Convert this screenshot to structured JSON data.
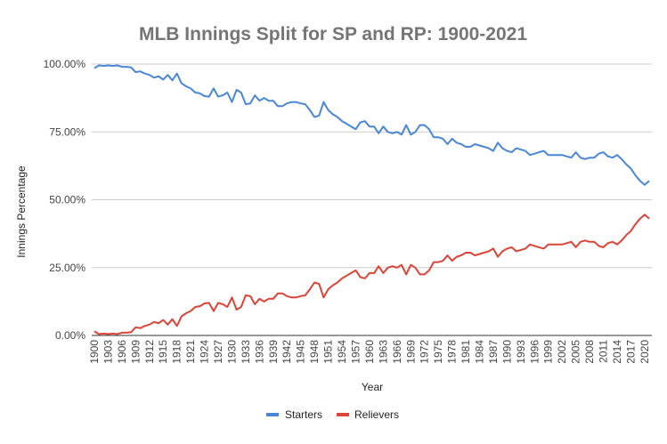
{
  "chart_data": {
    "type": "line",
    "title": "MLB Innings Split for SP and RP: 1900-2021",
    "xlabel": "Year",
    "ylabel": "Innings Percentage",
    "ylim": [
      0,
      100
    ],
    "y_ticks": [
      "0.00%",
      "25.00%",
      "50.00%",
      "75.00%",
      "100.00%"
    ],
    "y_tick_values": [
      0,
      25,
      50,
      75,
      100
    ],
    "x_start": 1900,
    "x_end": 2021,
    "x_tick_labels": [
      "1900",
      "1903",
      "1906",
      "1909",
      "1912",
      "1915",
      "1918",
      "1921",
      "1924",
      "1927",
      "1930",
      "1933",
      "1936",
      "1939",
      "1942",
      "1945",
      "1948",
      "1951",
      "1954",
      "1957",
      "1960",
      "1963",
      "1966",
      "1969",
      "1972",
      "1975",
      "1978",
      "1981",
      "1984",
      "1987",
      "1990",
      "1993",
      "1996",
      "1999",
      "2002",
      "2005",
      "2008",
      "2011",
      "2014",
      "2017",
      "2020"
    ],
    "grid": true,
    "legend_position": "bottom",
    "series": [
      {
        "name": "Starters",
        "color": "#4a86d8",
        "values": [
          98.5,
          99.5,
          99.3,
          99.5,
          99.3,
          99.5,
          99,
          99,
          98.8,
          97,
          97.3,
          96.5,
          96,
          95,
          95.5,
          94.3,
          96,
          94,
          96.5,
          93,
          91.8,
          91,
          89.5,
          89.2,
          88.2,
          88,
          91,
          88,
          88.5,
          89.5,
          86,
          90.5,
          89.5,
          85.2,
          85.5,
          88.5,
          86.5,
          87.5,
          86.5,
          86.5,
          84.5,
          84.5,
          85.5,
          86,
          86,
          85.5,
          85.2,
          83,
          80.5,
          81,
          86,
          83,
          81.5,
          80.5,
          79,
          78,
          77,
          76,
          78.5,
          79,
          77,
          77,
          74.5,
          77,
          75,
          74.5,
          75,
          74,
          77.5,
          74,
          75,
          77.5,
          77.5,
          76,
          73,
          73,
          72.5,
          70.5,
          72.5,
          71,
          70.5,
          69.5,
          69.5,
          70.5,
          70,
          69.5,
          69,
          68,
          71,
          69,
          68,
          67.5,
          69,
          68.5,
          68,
          66.5,
          67,
          67.5,
          68,
          66.5,
          66.5,
          66.5,
          66.5,
          66,
          65.5,
          67.5,
          65.5,
          65,
          65.5,
          65.5,
          67,
          67.5,
          66,
          65.5,
          66.5,
          65,
          63,
          61.5,
          59,
          57,
          55.5,
          57
        ]
      },
      {
        "name": "Relievers",
        "color": "#db4437",
        "values": [
          1.5,
          0.5,
          0.7,
          0.5,
          0.7,
          0.5,
          1,
          1,
          1.2,
          3,
          2.7,
          3.5,
          4,
          5,
          4.5,
          5.7,
          4,
          6,
          3.5,
          7,
          8.2,
          9,
          10.5,
          10.8,
          11.8,
          12,
          9,
          12,
          11.5,
          10.5,
          14,
          9.5,
          10.5,
          14.8,
          14.5,
          11.5,
          13.5,
          12.5,
          13.5,
          13.5,
          15.5,
          15.5,
          14.5,
          14,
          14,
          14.5,
          14.8,
          17,
          19.5,
          19,
          14,
          17,
          18.5,
          19.5,
          21,
          22,
          23,
          24,
          21.5,
          21,
          23,
          23,
          25.5,
          23,
          25,
          25.5,
          25,
          26,
          22.5,
          26,
          25,
          22.5,
          22.5,
          24,
          27,
          27,
          27.5,
          29.5,
          27.5,
          29,
          29.5,
          30.5,
          30.5,
          29.5,
          30,
          30.5,
          31,
          32,
          29,
          31,
          32,
          32.5,
          31,
          31.5,
          32,
          33.5,
          33,
          32.5,
          32,
          33.5,
          33.5,
          33.5,
          33.5,
          34,
          34.5,
          32.5,
          34.5,
          35,
          34.5,
          34.5,
          33,
          32.5,
          34,
          34.5,
          33.5,
          35,
          37,
          38.5,
          41,
          43,
          44.5,
          43
        ]
      }
    ]
  }
}
